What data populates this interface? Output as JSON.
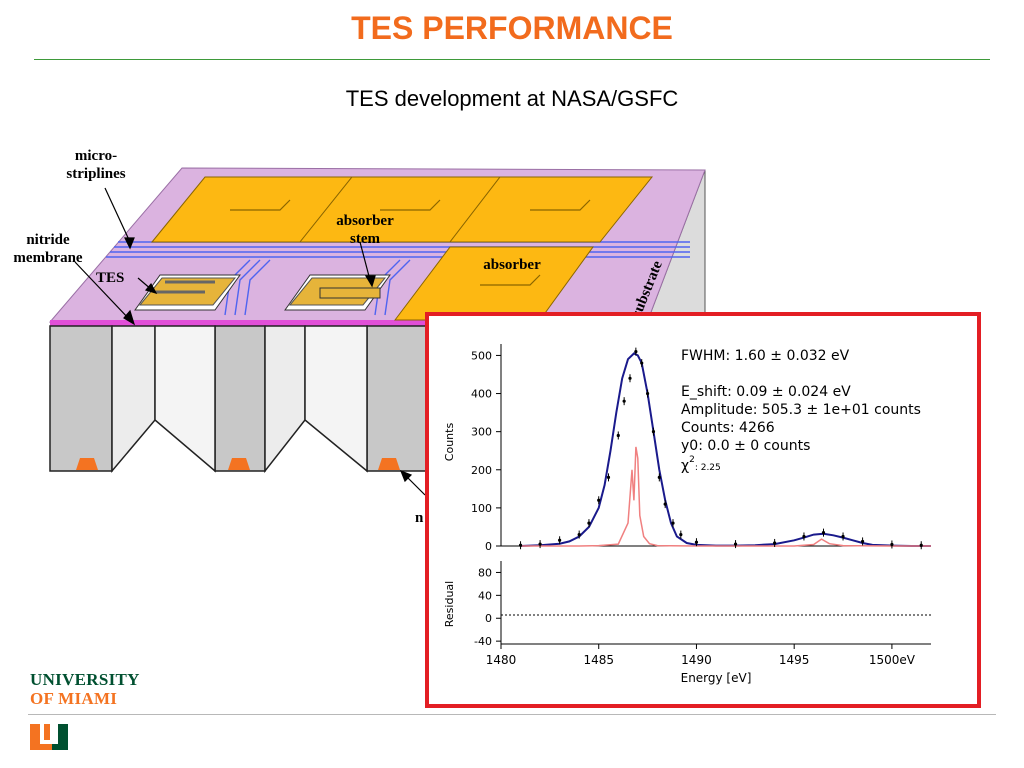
{
  "slide": {
    "title": "TES PERFORMANCE",
    "subtitle": "TES development at NASA/GSFC"
  },
  "diagram": {
    "labels": {
      "micro_line1": "micro-",
      "micro_line2": "striplines",
      "nitride_line1": "nitride",
      "nitride_line2": "membrane",
      "tes": "TES",
      "absorber_stem_line1": "absorber",
      "absorber_stem_line2": "stem",
      "absorber": "absorber",
      "substrate": "substrate",
      "partial": "n"
    }
  },
  "plot": {
    "annotations": {
      "fwhm": "FWHM: 1.60 ± 0.032 eV",
      "eshift": "E_shift: 0.09 ± 0.024 eV",
      "amplitude": "Amplitude: 505.3 ± 1e+01 counts",
      "counts": "Counts: 4266",
      "y0": "y0: 0.0 ± 0 counts",
      "chi": "χ",
      "chi_sup": "2",
      "chi_val": ": 2.25"
    },
    "ylabel_top": "Counts",
    "ylabel_bottom": "Residual",
    "xlabel": "Energy [eV]",
    "colors": {
      "fit": "#1a1a8c",
      "lines": "#f08080",
      "data": "#000000"
    }
  },
  "logo": {
    "line1": "UNIVERSITY",
    "line2": "OF MIAMI",
    "colors": {
      "green": "#005030",
      "orange": "#f47321"
    }
  },
  "chart_data": {
    "type": "line",
    "title": "",
    "xlabel": "Energy [eV]",
    "ylabel": "Counts",
    "xlim": [
      1480,
      1502
    ],
    "ylim": [
      0,
      530
    ],
    "x_ticks": [
      "1480",
      "1485",
      "1490",
      "1495",
      "1500eV"
    ],
    "y_ticks": [
      0,
      100,
      200,
      300,
      400,
      500
    ],
    "residual": {
      "ylabel": "Residual",
      "ylim": [
        -45,
        100
      ],
      "y_ticks": [
        80,
        40,
        0,
        -40
      ]
    },
    "series": [
      {
        "x": [
          1481,
          1482,
          1483,
          1483.5,
          1484,
          1484.5,
          1485,
          1485.3,
          1485.6,
          1485.9,
          1486.2,
          1486.5,
          1486.8,
          1487,
          1487.2,
          1487.5,
          1487.8,
          1488.1,
          1488.4,
          1488.7,
          1489,
          1489.5,
          1490,
          1491,
          1492,
          1493,
          1494,
          1495,
          1495.5,
          1496,
          1496.5,
          1497,
          1497.5,
          1498,
          1498.5,
          1499,
          1500,
          1501,
          1502
        ],
        "values": [
          0,
          2,
          6,
          12,
          25,
          50,
          100,
          160,
          250,
          350,
          440,
          490,
          505,
          500,
          480,
          400,
          300,
          200,
          120,
          60,
          25,
          8,
          3,
          1,
          1,
          2,
          5,
          15,
          22,
          30,
          32,
          28,
          22,
          15,
          8,
          3,
          1,
          0,
          0
        ]
      },
      {
        "x": [
          1481,
          1484,
          1485,
          1486,
          1486.5,
          1486.7,
          1486.8,
          1486.9,
          1487,
          1487.1,
          1487.3,
          1487.6,
          1488,
          1490,
          1495,
          1496,
          1496.4,
          1496.8,
          1497.5,
          1500,
          1502
        ],
        "values": [
          0,
          0,
          1,
          5,
          60,
          200,
          120,
          260,
          230,
          80,
          25,
          6,
          1,
          0,
          0,
          4,
          18,
          6,
          1,
          0,
          0
        ]
      },
      {
        "x": [
          1481,
          1482,
          1483,
          1484,
          1484.5,
          1485,
          1485.5,
          1486,
          1486.3,
          1486.6,
          1486.9,
          1487.2,
          1487.5,
          1487.8,
          1488.1,
          1488.4,
          1488.8,
          1489.2,
          1490,
          1492,
          1494,
          1495.5,
          1496.5,
          1497.5,
          1498.5,
          1500,
          1501.5
        ],
        "values": [
          2,
          5,
          15,
          30,
          60,
          120,
          180,
          290,
          380,
          440,
          510,
          480,
          400,
          300,
          180,
          110,
          60,
          30,
          10,
          5,
          8,
          25,
          35,
          25,
          12,
          4,
          2
        ]
      }
    ]
  }
}
